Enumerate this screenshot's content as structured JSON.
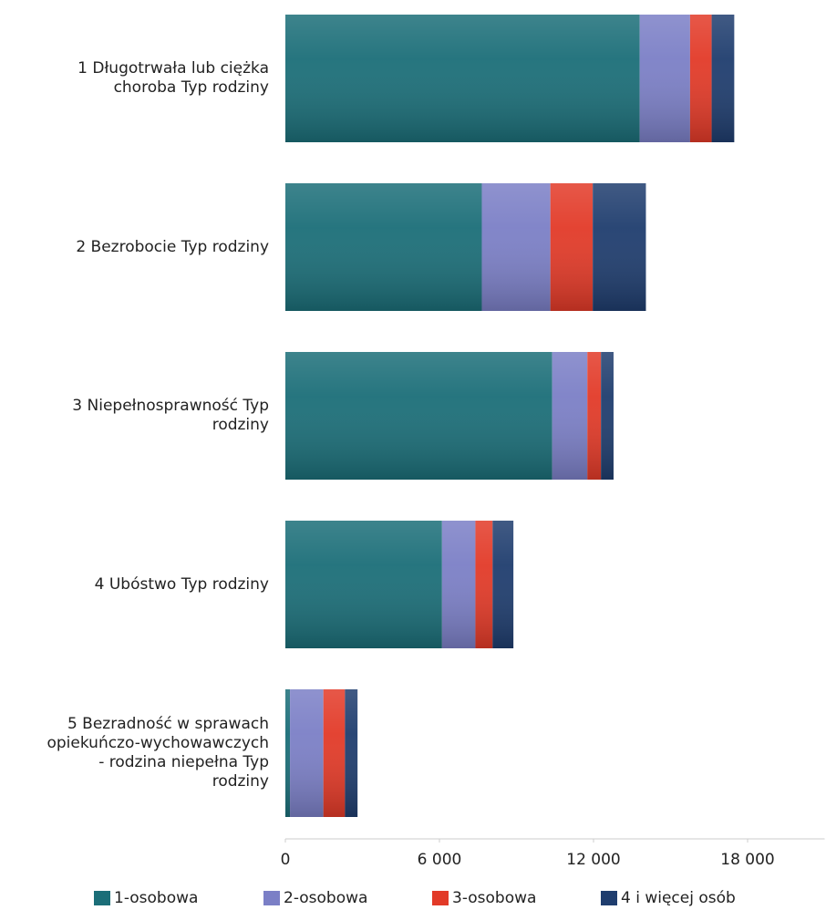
{
  "chart_data": {
    "type": "stacked-bar-horizontal",
    "categories": [
      "1 Długotrwała lub ciężka choroba Typ rodziny",
      "2 Bezrobocie Typ rodziny",
      "3 Niepełnosprawność Typ rodziny",
      "4 Ubóstwo Typ rodziny",
      "5 Bezradność w sprawach opiekuńczo-wychowawczych - rodzina niepełna Typ rodziny"
    ],
    "series": [
      {
        "name": "1-osobowa",
        "color": "#1b6e78",
        "values": [
          13800,
          7650,
          10390,
          6100,
          180
        ]
      },
      {
        "name": "2-osobowa",
        "color": "#7b7fc6",
        "values": [
          1960,
          2670,
          1370,
          1300,
          1300
        ]
      },
      {
        "name": "3-osobowa",
        "color": "#e23a28",
        "values": [
          840,
          1650,
          530,
          670,
          840
        ]
      },
      {
        "name": "4 i więcej osób",
        "color": "#1f3d6e",
        "values": [
          880,
          2070,
          490,
          810,
          490
        ]
      }
    ],
    "xlim": [
      0,
      21000
    ],
    "xticks": [
      0,
      {
        "value": 6000,
        "label": "6 000"
      },
      {
        "value": 12000,
        "label": "12 000"
      },
      {
        "value": 18000,
        "label": "18 000"
      }
    ],
    "legend": "bottom"
  }
}
